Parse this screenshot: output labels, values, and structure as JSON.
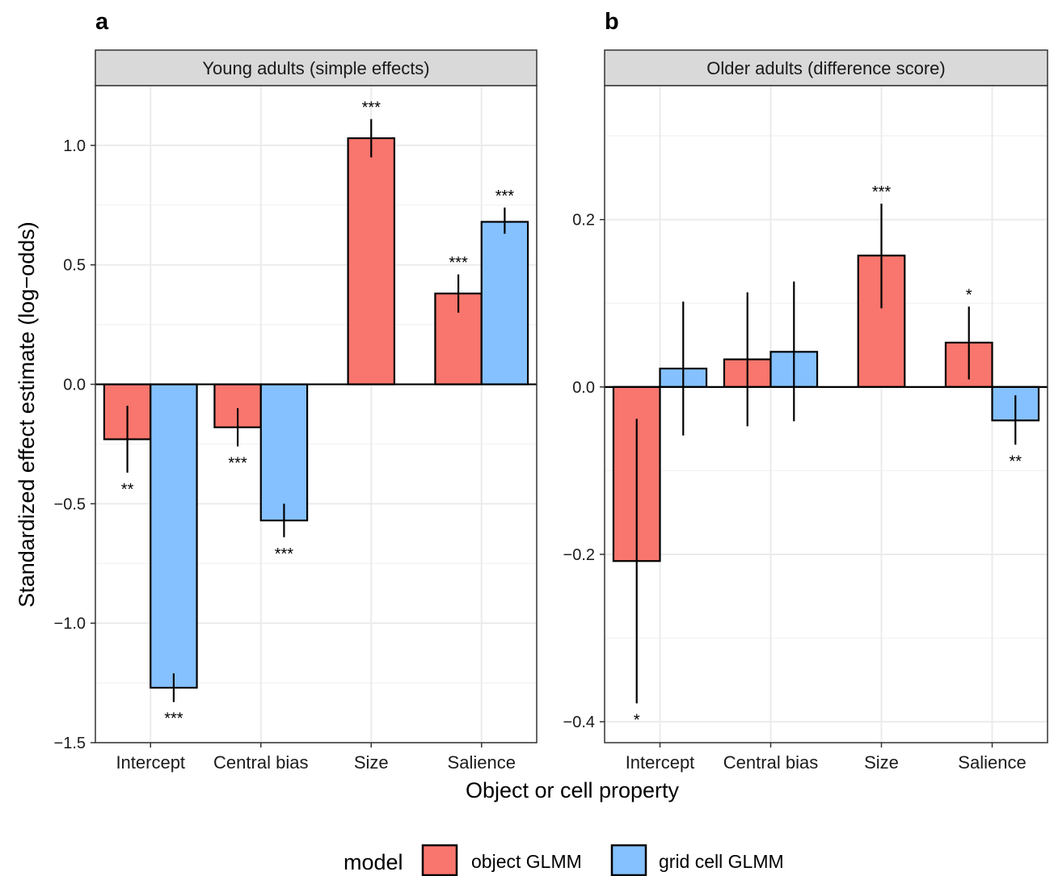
{
  "figure": {
    "ylabel": "Standardized effect estimate (log−odds)",
    "xlabel": "Object or cell property"
  },
  "legend": {
    "title": "model",
    "position": "bottom",
    "items": [
      {
        "label": "object GLMM",
        "color": "#F8766D"
      },
      {
        "label": "grid cell GLMM",
        "color": "#85C1FF"
      }
    ]
  },
  "chart_data": [
    {
      "type": "bar",
      "panel_tag": "a",
      "title": "Young adults (simple effects)",
      "categories": [
        "Intercept",
        "Central bias",
        "Size",
        "Salience"
      ],
      "ylim": [
        -1.5,
        1.25
      ],
      "y_ticks": [
        -1.5,
        -1.0,
        -0.5,
        0.0,
        0.5,
        1.0
      ],
      "y_tick_labels": [
        "−1.5",
        "−1.0",
        "−0.5",
        "0.0",
        "0.5",
        "1.0"
      ],
      "grid": true,
      "series": [
        {
          "name": "object GLMM",
          "color": "#F8766D",
          "values": [
            -0.23,
            -0.18,
            1.03,
            0.38
          ],
          "ci_low": [
            -0.37,
            -0.26,
            0.95,
            0.3
          ],
          "ci_high": [
            -0.09,
            -0.1,
            1.11,
            0.46
          ],
          "sig": [
            "**",
            "***",
            "***",
            "***"
          ]
        },
        {
          "name": "grid cell GLMM",
          "color": "#85C1FF",
          "values": [
            -1.27,
            -0.57,
            null,
            0.68
          ],
          "ci_low": [
            -1.33,
            -0.64,
            null,
            0.63
          ],
          "ci_high": [
            -1.21,
            -0.5,
            null,
            0.74
          ],
          "sig": [
            "***",
            "***",
            "",
            "***"
          ]
        }
      ]
    },
    {
      "type": "bar",
      "panel_tag": "b",
      "title": "Older adults (difference score)",
      "categories": [
        "Intercept",
        "Central bias",
        "Size",
        "Salience"
      ],
      "ylim": [
        -0.425,
        0.36
      ],
      "y_ticks": [
        -0.4,
        -0.2,
        0.0,
        0.2
      ],
      "y_tick_labels": [
        "−0.4",
        "−0.2",
        "0.0",
        "0.2"
      ],
      "grid": true,
      "series": [
        {
          "name": "object GLMM",
          "color": "#F8766D",
          "values": [
            -0.208,
            0.033,
            0.157,
            0.053
          ],
          "ci_low": [
            -0.378,
            -0.047,
            0.094,
            0.009
          ],
          "ci_high": [
            -0.038,
            0.113,
            0.219,
            0.096
          ],
          "sig": [
            "*",
            "",
            "***",
            "*"
          ]
        },
        {
          "name": "grid cell GLMM",
          "color": "#85C1FF",
          "values": [
            0.022,
            0.042,
            null,
            -0.04
          ],
          "ci_low": [
            -0.058,
            -0.041,
            null,
            -0.069
          ],
          "ci_high": [
            0.102,
            0.126,
            null,
            -0.01
          ],
          "sig": [
            "",
            "",
            "",
            "**"
          ]
        }
      ]
    }
  ]
}
